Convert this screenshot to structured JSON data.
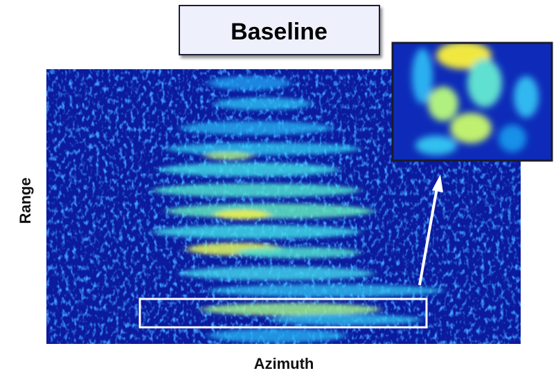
{
  "title": "Baseline",
  "x_label": "Azimuth",
  "y_label": "Range"
}
